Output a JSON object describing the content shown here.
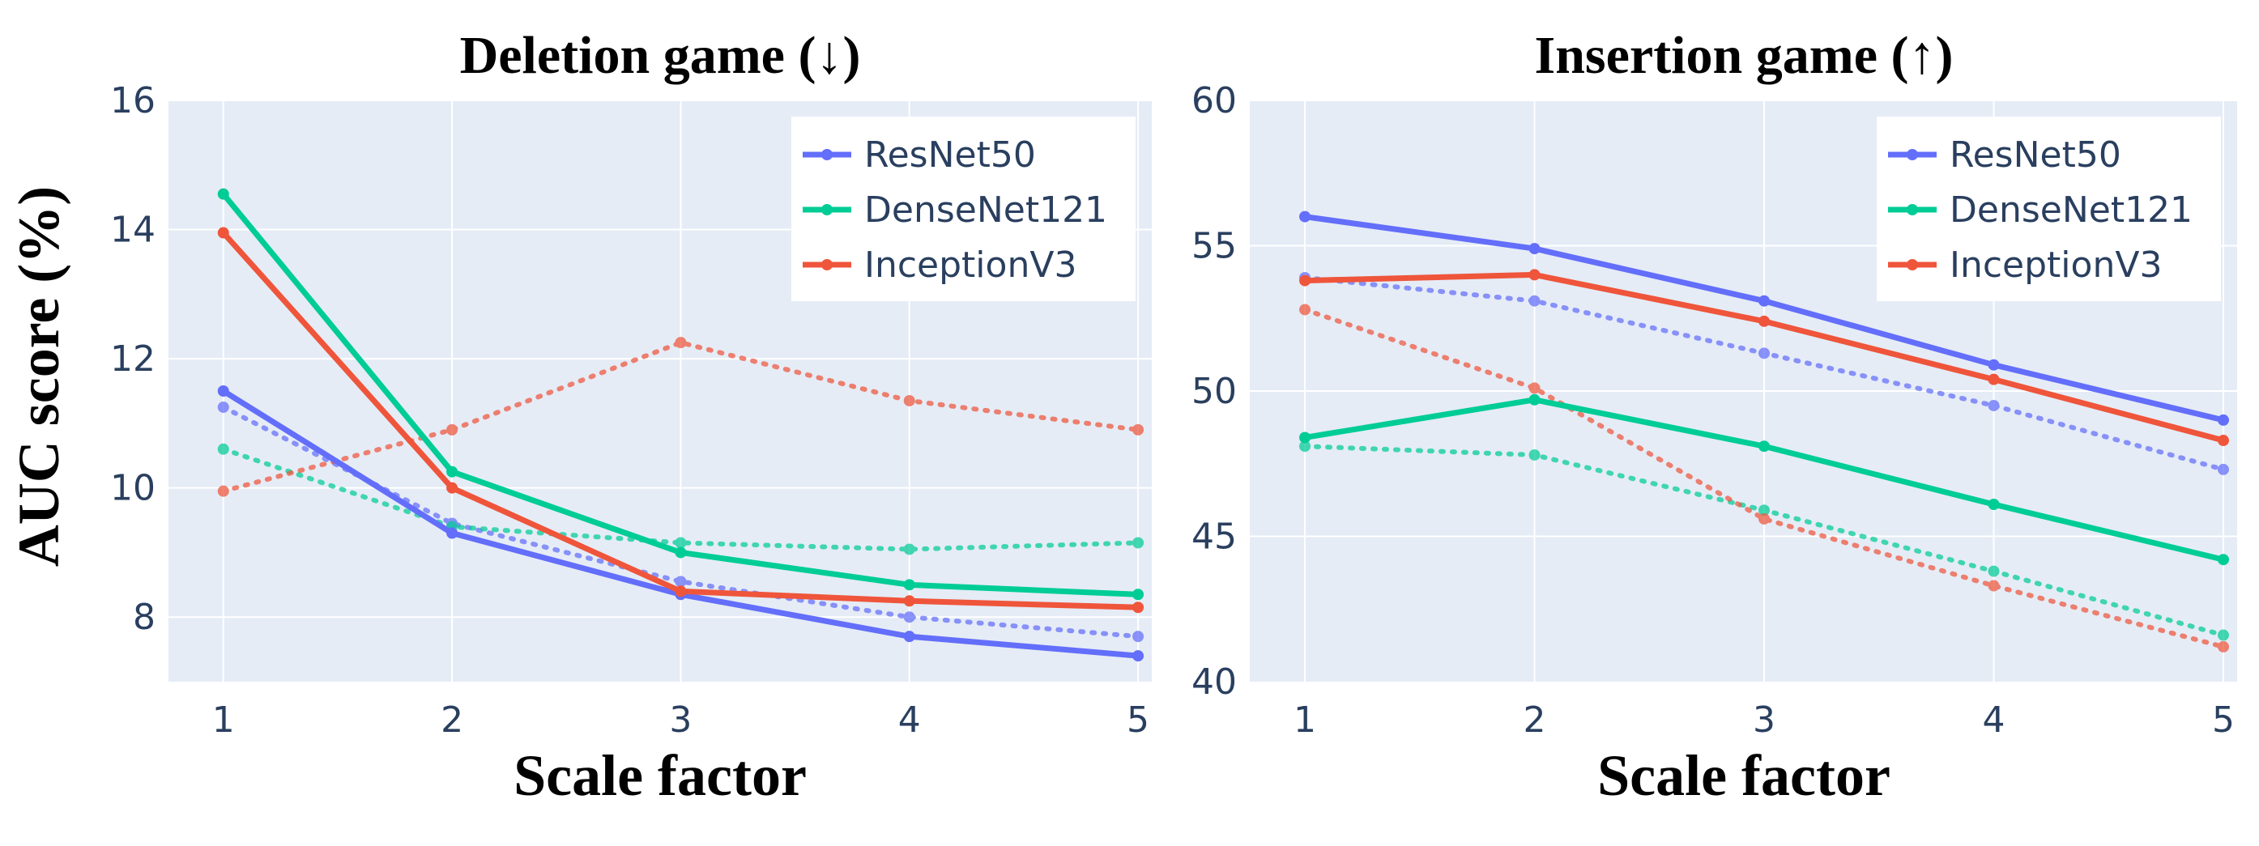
{
  "figure": {
    "ylabel": "AUC score (%)"
  },
  "chart_data": [
    {
      "type": "line",
      "title": "Deletion game (↓)",
      "xlabel": "Scale factor",
      "ylabel": "AUC score (%)",
      "x": [
        1,
        2,
        3,
        4,
        5
      ],
      "xticks": [
        "1",
        "2",
        "3",
        "4",
        "5"
      ],
      "yticks": [
        "8",
        "10",
        "12",
        "14",
        "16"
      ],
      "ytick_values": [
        8,
        10,
        12,
        14,
        16
      ],
      "ylim": [
        7,
        16
      ],
      "grid": true,
      "legend_position": "top-right",
      "series": [
        {
          "name": "ResNet50",
          "color": "#636efa",
          "style": "solid",
          "values": [
            11.5,
            9.3,
            8.35,
            7.7,
            7.4
          ]
        },
        {
          "name": "DenseNet121",
          "color": "#00cc96",
          "style": "solid",
          "values": [
            14.55,
            10.25,
            9.0,
            8.5,
            8.35
          ]
        },
        {
          "name": "InceptionV3",
          "color": "#ef553b",
          "style": "solid",
          "values": [
            13.95,
            10.0,
            8.4,
            8.25,
            8.15
          ]
        },
        {
          "name": "",
          "color": "#636efa",
          "style": "dotted",
          "values": [
            11.25,
            9.45,
            8.55,
            8.0,
            7.7
          ]
        },
        {
          "name": "",
          "color": "#00cc96",
          "style": "dotted",
          "values": [
            10.6,
            9.4,
            9.15,
            9.05,
            9.15
          ]
        },
        {
          "name": "",
          "color": "#ef553b",
          "style": "dotted",
          "values": [
            9.95,
            10.9,
            12.25,
            11.35,
            10.9
          ]
        }
      ]
    },
    {
      "type": "line",
      "title": "Insertion game (↑)",
      "xlabel": "Scale factor",
      "ylabel": "",
      "x": [
        1,
        2,
        3,
        4,
        5
      ],
      "xticks": [
        "1",
        "2",
        "3",
        "4",
        "5"
      ],
      "yticks": [
        "40",
        "45",
        "50",
        "55",
        "60"
      ],
      "ytick_values": [
        40,
        45,
        50,
        55,
        60
      ],
      "ylim": [
        40,
        60
      ],
      "grid": true,
      "legend_position": "top-right",
      "series": [
        {
          "name": "ResNet50",
          "color": "#636efa",
          "style": "solid",
          "values": [
            56.0,
            54.9,
            53.1,
            50.9,
            49.0
          ]
        },
        {
          "name": "DenseNet121",
          "color": "#00cc96",
          "style": "solid",
          "values": [
            48.4,
            49.7,
            48.1,
            46.1,
            44.2
          ]
        },
        {
          "name": "InceptionV3",
          "color": "#ef553b",
          "style": "solid",
          "values": [
            53.8,
            54.0,
            52.4,
            50.4,
            48.3
          ]
        },
        {
          "name": "",
          "color": "#636efa",
          "style": "dotted",
          "values": [
            53.9,
            53.1,
            51.3,
            49.5,
            47.3
          ]
        },
        {
          "name": "",
          "color": "#00cc96",
          "style": "dotted",
          "values": [
            48.1,
            47.8,
            45.9,
            43.8,
            41.6
          ]
        },
        {
          "name": "",
          "color": "#ef553b",
          "style": "dotted",
          "values": [
            52.8,
            50.1,
            45.6,
            43.3,
            41.2
          ]
        }
      ]
    }
  ],
  "colors": {
    "plot_background": "#e5ecf6",
    "grid": "#ffffff",
    "tick_text": "#2a3f5f"
  }
}
